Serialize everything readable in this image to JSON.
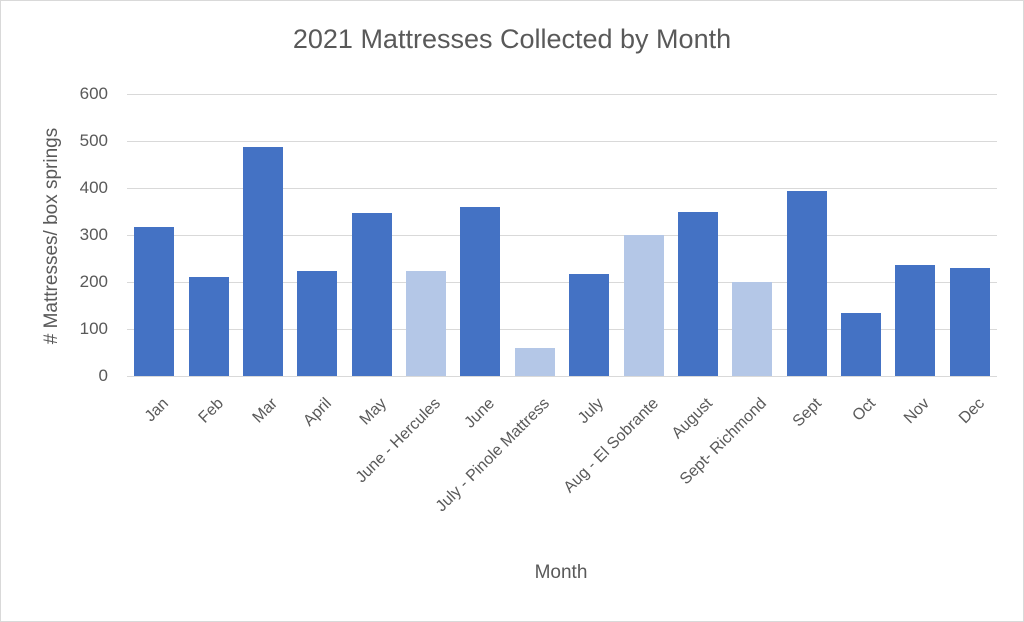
{
  "chart_data": {
    "type": "bar",
    "title": "2021 Mattresses Collected by Month",
    "xlabel": "Month",
    "ylabel": "# Mattresses/ box springs",
    "ylim": [
      0,
      600
    ],
    "yticks": [
      0,
      100,
      200,
      300,
      400,
      500,
      600
    ],
    "grid": true,
    "legend": null,
    "categories": [
      "Jan",
      "Feb",
      "Mar",
      "April",
      "May",
      "June - Hercules",
      "June",
      "July - Pinole Mattress",
      "July",
      "Aug - El Sobrante",
      "August",
      "Sept- Richmond",
      "Sept",
      "Oct",
      "Nov",
      "Dec"
    ],
    "values": [
      317,
      210,
      487,
      223,
      346,
      224,
      360,
      60,
      217,
      300,
      350,
      200,
      394,
      134,
      237,
      229
    ],
    "bar_types": [
      "regular",
      "regular",
      "regular",
      "regular",
      "regular",
      "event",
      "regular",
      "event",
      "regular",
      "event",
      "regular",
      "event",
      "regular",
      "regular",
      "regular",
      "regular"
    ],
    "colors": {
      "regular": "#4472c4",
      "event": "#b4c7e7",
      "grid": "#d9d9d9",
      "text": "#595959"
    }
  }
}
